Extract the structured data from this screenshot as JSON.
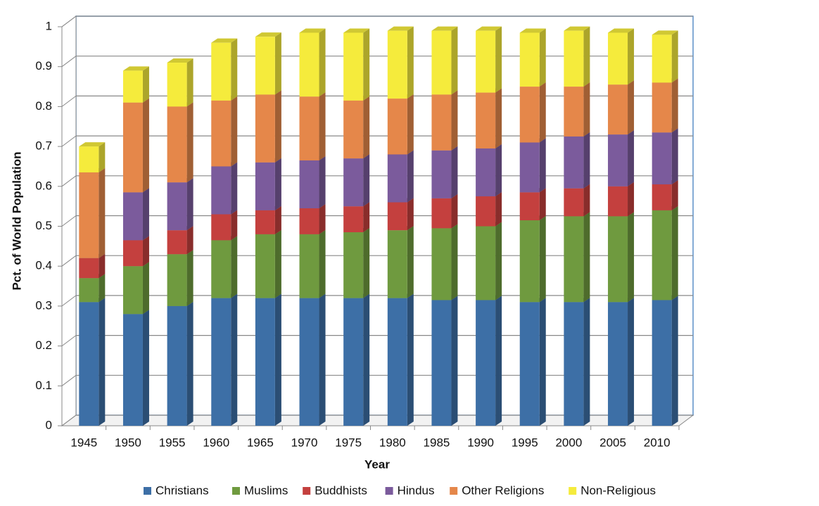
{
  "chart_data": {
    "type": "stacked-bar-3d",
    "x_label": "Year",
    "y_label": "Pct. of World Population",
    "categories": [
      "1945",
      "1950",
      "1955",
      "1960",
      "1965",
      "1970",
      "1975",
      "1980",
      "1985",
      "1990",
      "1995",
      "2000",
      "2005",
      "2010"
    ],
    "series": [
      {
        "name": "Christians",
        "color": "#3d6fa6",
        "values": [
          0.31,
          0.28,
          0.3,
          0.32,
          0.32,
          0.32,
          0.32,
          0.32,
          0.315,
          0.315,
          0.31,
          0.31,
          0.31,
          0.315
        ]
      },
      {
        "name": "Muslims",
        "color": "#6f9a3f",
        "values": [
          0.06,
          0.12,
          0.13,
          0.145,
          0.16,
          0.16,
          0.165,
          0.17,
          0.18,
          0.185,
          0.205,
          0.215,
          0.215,
          0.225
        ]
      },
      {
        "name": "Buddhists",
        "color": "#c4403e",
        "values": [
          0.05,
          0.065,
          0.06,
          0.065,
          0.06,
          0.065,
          0.065,
          0.07,
          0.075,
          0.075,
          0.07,
          0.07,
          0.075,
          0.065
        ]
      },
      {
        "name": "Hindus",
        "color": "#7b5b9c",
        "values": [
          0,
          0.12,
          0.12,
          0.12,
          0.12,
          0.12,
          0.12,
          0.12,
          0.12,
          0.12,
          0.125,
          0.13,
          0.13,
          0.13
        ]
      },
      {
        "name": "Other Religions",
        "color": "#e5874a",
        "values": [
          0.215,
          0.225,
          0.19,
          0.165,
          0.17,
          0.16,
          0.145,
          0.14,
          0.14,
          0.14,
          0.14,
          0.125,
          0.125,
          0.125
        ]
      },
      {
        "name": "Non-Religious",
        "color": "#f5eb3c",
        "values": [
          0.065,
          0.08,
          0.11,
          0.145,
          0.145,
          0.16,
          0.17,
          0.17,
          0.16,
          0.155,
          0.135,
          0.14,
          0.13,
          0.12
        ]
      }
    ],
    "ylim": [
      0,
      1
    ],
    "yticks": [
      0,
      0.1,
      0.2,
      0.3,
      0.4,
      0.5,
      0.6,
      0.7,
      0.8,
      0.9,
      1
    ],
    "grid": true,
    "legend": "bottom"
  }
}
